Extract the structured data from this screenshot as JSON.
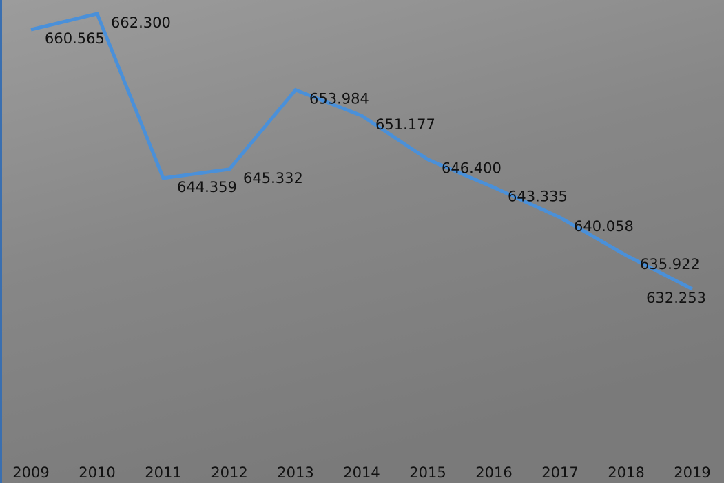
{
  "chart_data": {
    "type": "line",
    "x": [
      "2009",
      "2010",
      "2011",
      "2012",
      "2013",
      "2014",
      "2015",
      "2016",
      "2017",
      "2018",
      "2019"
    ],
    "series": [
      {
        "color": "#4a90d9",
        "values": [
          660.565,
          662.3,
          644.359,
          645.332,
          653.984,
          651.177,
          646.4,
          643.335,
          640.058,
          635.922,
          632.253
        ],
        "value_labels": [
          "660.565",
          "662.300",
          "644.359",
          "645.332",
          "653.984",
          "651.177",
          "646.400",
          "643.335",
          "640.058",
          "635.922",
          "632.253"
        ]
      }
    ]
  }
}
